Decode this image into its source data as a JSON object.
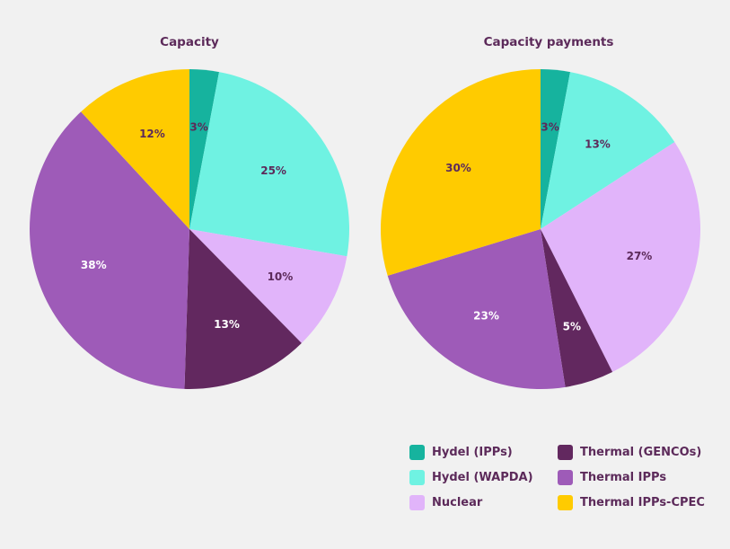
{
  "colors": {
    "Hydel (IPPs)": "#16b39e",
    "Hydel (WAPDA)": "#6ff2e2",
    "Nuclear": "#e1b4fa",
    "Thermal (GENCOs)": "#62285f",
    "Thermal IPPs": "#9e5bb8",
    "Thermal IPPs-CPEC": "#ffcb00"
  },
  "legend": {
    "placement": "bottom-right",
    "items": [
      "Hydel (IPPs)",
      "Thermal (GENCOs)",
      "Hydel (WAPDA)",
      "Thermal IPPs",
      "Nuclear",
      "Thermal IPPs-CPEC"
    ]
  },
  "chart_data": [
    {
      "type": "pie",
      "title": "Capacity",
      "categories": [
        "Hydel (IPPs)",
        "Hydel (WAPDA)",
        "Nuclear",
        "Thermal (GENCOs)",
        "Thermal IPPs",
        "Thermal IPPs-CPEC"
      ],
      "values": [
        3,
        25,
        10,
        13,
        38,
        12
      ],
      "labels": [
        "3%",
        "25%",
        "10%",
        "13%",
        "38%",
        "12%"
      ]
    },
    {
      "type": "pie",
      "title": "Capacity payments",
      "categories": [
        "Hydel (IPPs)",
        "Hydel (WAPDA)",
        "Nuclear",
        "Thermal (GENCOs)",
        "Thermal IPPs",
        "Thermal IPPs-CPEC"
      ],
      "values": [
        3,
        13,
        27,
        5,
        23,
        30
      ],
      "labels": [
        "3%",
        "13%",
        "27%",
        "5%",
        "23%",
        "30%"
      ]
    }
  ]
}
